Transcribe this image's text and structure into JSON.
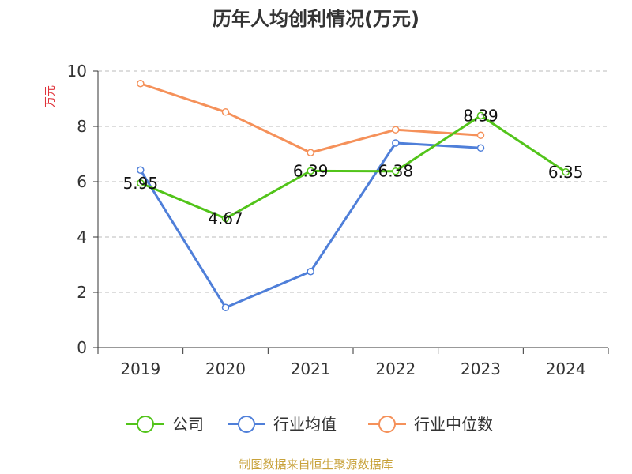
{
  "chart_data": {
    "type": "line",
    "title": "历年人均创利情况(万元)",
    "ylabel": "万元",
    "xlabel": "",
    "categories": [
      "2019",
      "2020",
      "2021",
      "2022",
      "2023",
      "2024"
    ],
    "ylim": [
      0,
      10
    ],
    "yticks": [
      0,
      2,
      4,
      6,
      8,
      10
    ],
    "grid": true,
    "series": [
      {
        "name": "公司",
        "color": "#52c41a",
        "values": [
          5.95,
          4.67,
          6.39,
          6.38,
          8.39,
          6.35
        ],
        "data_labels": [
          "5.95",
          "4.67",
          "6.39",
          "6.38",
          "8.39",
          "6.35"
        ]
      },
      {
        "name": "行业均值",
        "color": "#4f7fd9",
        "values": [
          6.42,
          1.45,
          2.75,
          7.4,
          7.22,
          null
        ]
      },
      {
        "name": "行业中位数",
        "color": "#f5915a",
        "values": [
          9.55,
          8.52,
          7.05,
          7.88,
          7.68,
          null
        ]
      }
    ],
    "legend_position": "bottom",
    "source": "制图数据来自恒生聚源数据库"
  }
}
